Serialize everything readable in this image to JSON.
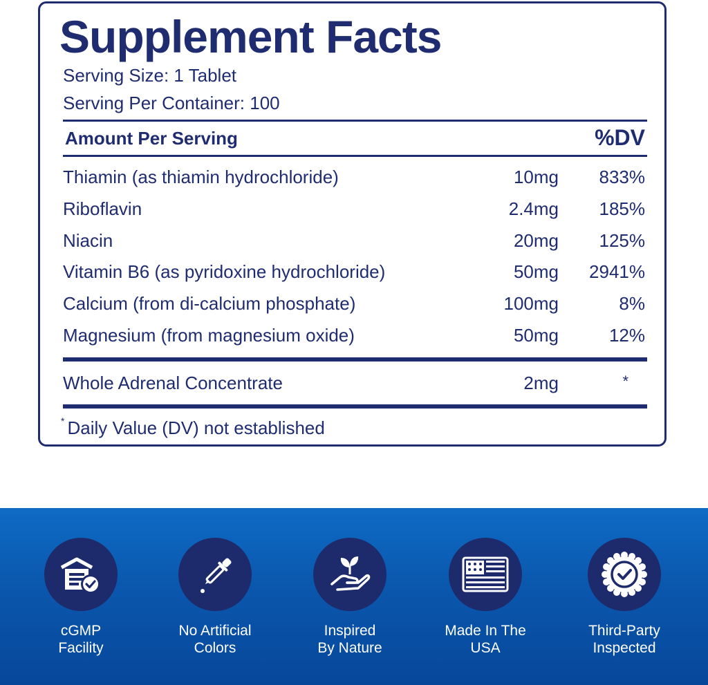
{
  "panel": {
    "title": "Supplement Facts",
    "serving_size": "Serving Size: 1 Tablet",
    "servings_per_container": "Serving Per Container: 100",
    "header_amount": "Amount Per Serving",
    "header_dv": "%DV",
    "rows": [
      {
        "name": "Thiamin (as thiamin hydrochloride)",
        "amount": "10mg",
        "dv": "833%"
      },
      {
        "name": "Riboflavin",
        "amount": "2.4mg",
        "dv": "185%"
      },
      {
        "name": "Niacin",
        "amount": "20mg",
        "dv": "125%"
      },
      {
        "name": "Vitamin B6 (as pyridoxine hydrochloride)",
        "amount": "50mg",
        "dv": "2941%"
      },
      {
        "name": "Calcium (from di-calcium phosphate)",
        "amount": "100mg",
        "dv": "8%"
      },
      {
        "name": "Magnesium (from magnesium oxide)",
        "amount": "50mg",
        "dv": "12%"
      }
    ],
    "blend_row": {
      "name": "Whole Adrenal Concentrate",
      "amount": "2mg",
      "dv": "*"
    },
    "footnote_mark": "*",
    "footnote": "Daily Value (DV) not established"
  },
  "badges": [
    {
      "icon": "facility-check-icon",
      "line1": "cGMP",
      "line2": "Facility"
    },
    {
      "icon": "dropper-icon",
      "line1": "No Artificial",
      "line2": "Colors"
    },
    {
      "icon": "hand-sprout-icon",
      "line1": "Inspired",
      "line2": "By Nature"
    },
    {
      "icon": "usa-flag-icon",
      "line1": "Made In The",
      "line2": "USA"
    },
    {
      "icon": "seal-check-icon",
      "line1": "Third-Party",
      "line2": "Inspected"
    }
  ],
  "colors": {
    "navy": "#1f2c70",
    "band_top": "#0f6bc4",
    "band_bottom": "#07479a",
    "badge_circle": "#1d2a6b"
  }
}
